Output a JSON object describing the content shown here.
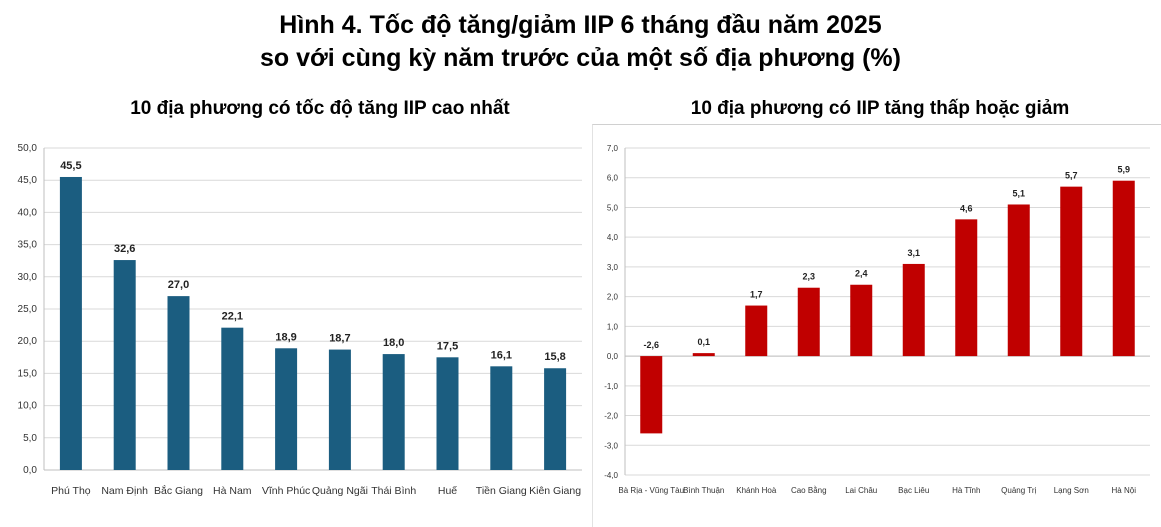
{
  "figure": {
    "title_line1": "Hình 4. Tốc độ tăng/giảm IIP 6 tháng đầu năm 2025",
    "title_line2": "so với cùng kỳ năm trước của một số địa phương (%)"
  },
  "colors": {
    "left_bar": "#1b5d80",
    "right_bar": "#c00000",
    "grid": "#d9d9d9"
  },
  "chart_data": [
    {
      "type": "bar",
      "title": "10 địa phương có tốc độ tăng IIP cao nhất",
      "categories": [
        "Phú Thọ",
        "Nam Định",
        "Bắc Giang",
        "Hà Nam",
        "Vĩnh Phúc",
        "Quảng Ngãi",
        "Thái Bình",
        "Huế",
        "Tiền Giang",
        "Kiên Giang"
      ],
      "values": [
        45.5,
        32.6,
        27.0,
        22.1,
        18.9,
        18.7,
        18.0,
        17.5,
        16.1,
        15.8
      ],
      "data_labels": [
        "45,5",
        "32,6",
        "27,0",
        "22,1",
        "18,9",
        "18,7",
        "18,0",
        "17,5",
        "16,1",
        "15,8"
      ],
      "yticks": [
        "0,0",
        "5,0",
        "10,0",
        "15,0",
        "20,0",
        "25,0",
        "30,0",
        "35,0",
        "40,0",
        "45,0",
        "50,0"
      ],
      "ylim": [
        0,
        50
      ],
      "grid": true
    },
    {
      "type": "bar",
      "title": "10 địa phương có IIP tăng thấp hoặc giảm",
      "categories": [
        "Bà Rịa - Vũng Tàu",
        "Bình Thuận",
        "Khánh Hoà",
        "Cao Bằng",
        "Lai Châu",
        "Bạc Liêu",
        "Hà Tĩnh",
        "Quảng Trị",
        "Lạng Sơn",
        "Hà Nội"
      ],
      "values": [
        -2.6,
        0.1,
        1.7,
        2.3,
        2.4,
        3.1,
        4.6,
        5.1,
        5.7,
        5.9
      ],
      "data_labels": [
        "-2,6",
        "0,1",
        "1,7",
        "2,3",
        "2,4",
        "3,1",
        "4,6",
        "5,1",
        "5,7",
        "5,9"
      ],
      "yticks": [
        "-4,0",
        "-3,0",
        "-2,0",
        "-1,0",
        "0,0",
        "1,0",
        "2,0",
        "3,0",
        "4,0",
        "5,0",
        "6,0",
        "7,0"
      ],
      "ylim": [
        -4,
        7
      ],
      "grid": true
    }
  ]
}
